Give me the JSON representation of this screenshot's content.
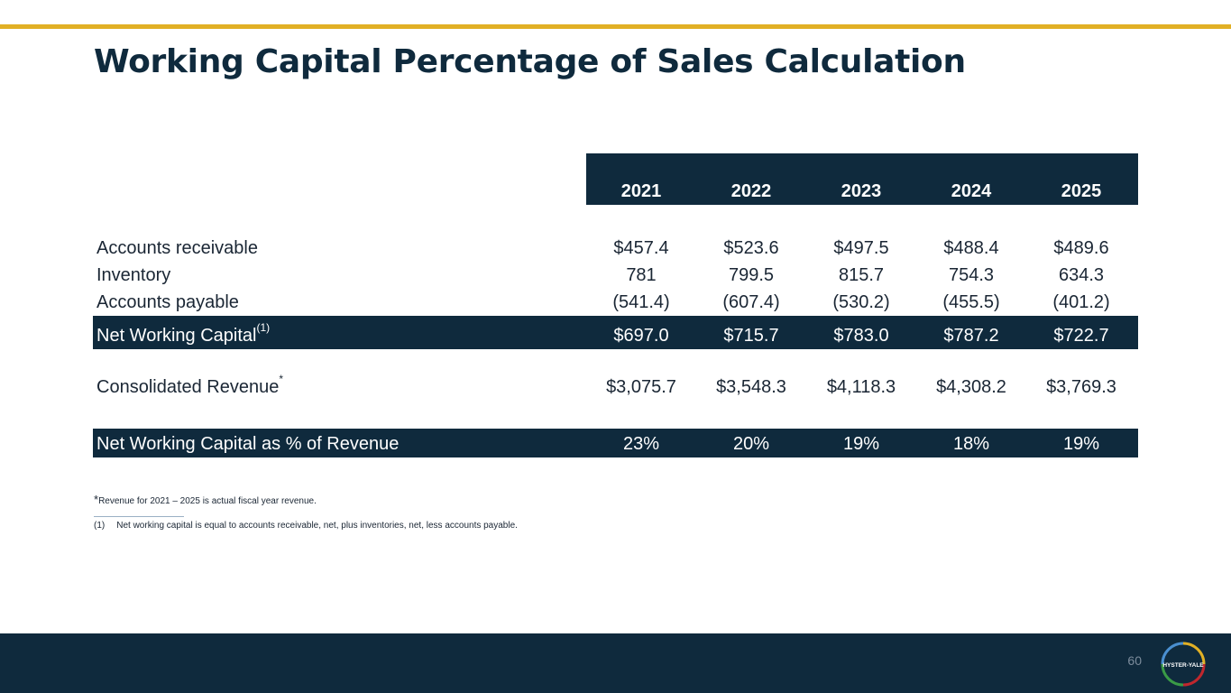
{
  "title": "Working Capital Percentage of Sales Calculation",
  "years": [
    "2021",
    "2022",
    "2023",
    "2024",
    "2025"
  ],
  "rows": {
    "accounts_receivable": {
      "label": "Accounts receivable",
      "values": [
        "$457.4",
        "$523.6",
        "$497.5",
        "$488.4",
        "$489.6"
      ]
    },
    "inventory": {
      "label": "Inventory",
      "values": [
        "781",
        "799.5",
        "815.7",
        "754.3",
        "634.3"
      ]
    },
    "accounts_payable": {
      "label": "Accounts payable",
      "values": [
        "(541.4)",
        "(607.4)",
        "(530.2)",
        "(455.5)",
        "(401.2)"
      ]
    },
    "net_working_capital": {
      "label": "Net Working Capital",
      "sup": "(1)",
      "values": [
        "$697.0",
        "$715.7",
        "$783.0",
        "$787.2",
        "$722.7"
      ]
    },
    "consolidated_revenue": {
      "label": "Consolidated Revenue",
      "sup": "*",
      "values": [
        "$3,075.7",
        "$3,548.3",
        "$4,118.3",
        "$4,308.2",
        "$3,769.3"
      ]
    },
    "nwc_pct_revenue": {
      "label": "Net Working Capital as % of Revenue",
      "values": [
        "23%",
        "20%",
        "19%",
        "18%",
        "19%"
      ]
    }
  },
  "footnotes": {
    "revenue_star": "*",
    "revenue_note": "Revenue for 2021 – 2025 is actual fiscal year revenue.",
    "nwc_marker": "(1)",
    "nwc_note": "Net working capital is equal to accounts receivable, net, plus inventories, net, less accounts payable."
  },
  "page_number": "60",
  "logo_text": "HYSTER-YALE",
  "colors": {
    "navy": "#0f2a3d",
    "gold": "#e1b025",
    "text": "#1a2634"
  }
}
